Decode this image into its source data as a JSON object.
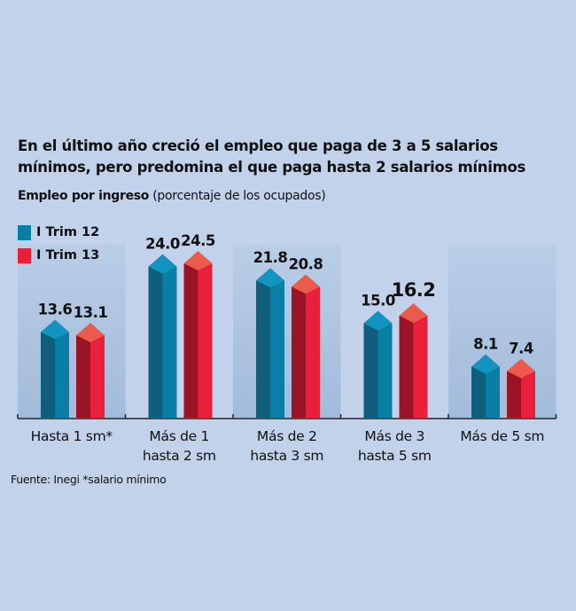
{
  "title": "En el último año creció el empleo que paga de 3 a 5 salarios mínimos, pero predomina el que paga hasta 2 salarios mínimos",
  "subtitle_bold": "Empleo por ingreso",
  "subtitle_rest": " (porcentaje de los ocupados)",
  "source": "Fuente: Inegi *salario mínimo",
  "colors": {
    "blue": "#0a7fa6",
    "blue_dark": "#0f5f7c",
    "blue_top": "#1393bf",
    "red": "#e8203b",
    "red_dark": "#9a1428",
    "red_top": "#ec5a4c"
  },
  "chart_data": {
    "type": "bar",
    "title": "Empleo por ingreso (porcentaje de los ocupados)",
    "categories": [
      [
        "Hasta 1 sm*"
      ],
      [
        "Más de 1",
        "hasta 2 sm"
      ],
      [
        "Más de 2",
        "hasta 3 sm"
      ],
      [
        "Más de 3",
        "hasta 5 sm"
      ],
      [
        "Más de 5 sm"
      ]
    ],
    "series": [
      {
        "name": "I Trim 12",
        "values": [
          13.6,
          24.0,
          21.8,
          15.0,
          8.1
        ],
        "labels": [
          "13.6",
          "24.0",
          "21.8",
          "15.0",
          "8.1"
        ]
      },
      {
        "name": "I Trim 13",
        "values": [
          13.1,
          24.5,
          20.8,
          16.2,
          7.4
        ],
        "labels": [
          "13.1",
          "24.5",
          "20.8",
          "16.2",
          "7.4"
        ]
      }
    ],
    "emphasized": {
      "series": 1,
      "category": 3
    },
    "ylim": [
      0,
      26
    ],
    "legend": "top-left"
  }
}
